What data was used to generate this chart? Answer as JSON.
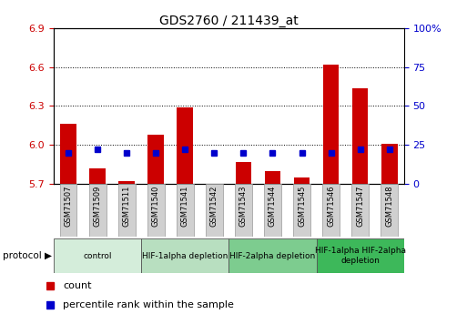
{
  "title": "GDS2760 / 211439_at",
  "samples": [
    "GSM71507",
    "GSM71509",
    "GSM71511",
    "GSM71540",
    "GSM71541",
    "GSM71542",
    "GSM71543",
    "GSM71544",
    "GSM71545",
    "GSM71546",
    "GSM71547",
    "GSM71548"
  ],
  "count_values": [
    6.16,
    5.82,
    5.72,
    6.08,
    6.29,
    5.7,
    5.87,
    5.8,
    5.75,
    6.62,
    6.44,
    6.01
  ],
  "percentile_values": [
    20,
    22,
    20,
    20,
    22,
    20,
    20,
    20,
    20,
    20,
    22,
    22
  ],
  "y_left_min": 5.7,
  "y_left_max": 6.9,
  "y_right_min": 0,
  "y_right_max": 100,
  "y_left_ticks": [
    5.7,
    6.0,
    6.3,
    6.6,
    6.9
  ],
  "y_right_ticks": [
    0,
    25,
    50,
    75,
    100
  ],
  "bar_color": "#cc0000",
  "dot_color": "#0000cc",
  "title_color": "#000000",
  "left_tick_color": "#cc0000",
  "right_tick_color": "#0000cc",
  "grid_color": "#000000",
  "groups": [
    {
      "label": "control",
      "start": 0,
      "end": 3,
      "color": "#d4edda"
    },
    {
      "label": "HIF-1alpha depletion",
      "start": 3,
      "end": 6,
      "color": "#b8dfc0"
    },
    {
      "label": "HIF-2alpha depletion",
      "start": 6,
      "end": 9,
      "color": "#7dcc8f"
    },
    {
      "label": "HIF-1alpha HIF-2alpha\ndepletion",
      "start": 9,
      "end": 12,
      "color": "#3db85a"
    }
  ],
  "legend_count_label": "count",
  "legend_percentile_label": "percentile rank within the sample",
  "protocol_label": "protocol",
  "bar_width": 0.55,
  "xlim_left": -0.5,
  "xlim_right": 11.5
}
